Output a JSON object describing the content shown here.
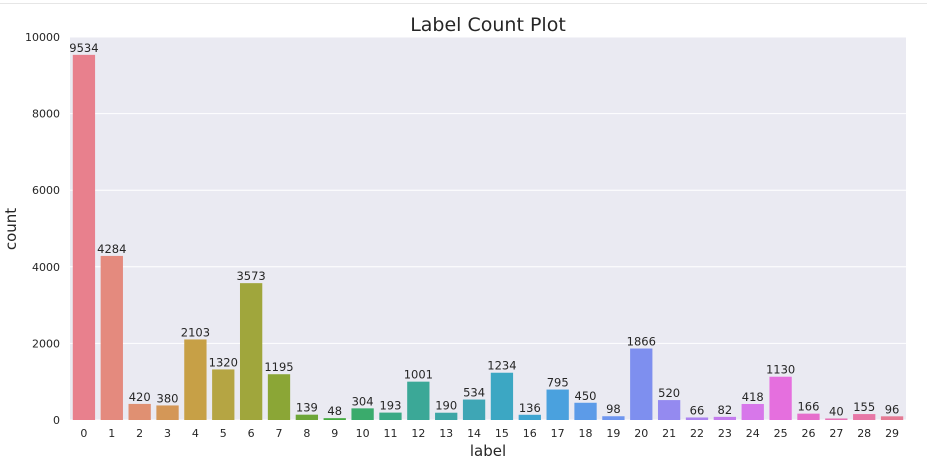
{
  "chart_data": {
    "type": "bar",
    "title": "Label Count Plot",
    "xlabel": "label",
    "ylabel": "count",
    "ylim": [
      0,
      10000
    ],
    "yticks": [
      0,
      2000,
      4000,
      6000,
      8000,
      10000
    ],
    "grid": true,
    "categories": [
      "0",
      "1",
      "2",
      "3",
      "4",
      "5",
      "6",
      "7",
      "8",
      "9",
      "10",
      "11",
      "12",
      "13",
      "14",
      "15",
      "16",
      "17",
      "18",
      "19",
      "20",
      "21",
      "22",
      "23",
      "24",
      "25",
      "26",
      "27",
      "28",
      "29"
    ],
    "values": [
      9534,
      4284,
      420,
      380,
      2103,
      1320,
      3573,
      1195,
      139,
      48,
      304,
      193,
      1001,
      190,
      534,
      1234,
      136,
      795,
      450,
      98,
      1866,
      520,
      66,
      82,
      418,
      1130,
      166,
      40,
      155,
      96
    ],
    "colors": [
      "#e8808d",
      "#e48a7e",
      "#e09072",
      "#d49757",
      "#c7a046",
      "#b5a543",
      "#a0a63c",
      "#8ba636",
      "#6ea638",
      "#46ab41",
      "#3aab6c",
      "#3aa985",
      "#3ba897",
      "#3da6a6",
      "#3ea6b5",
      "#3ca7c3",
      "#3fa5d1",
      "#4aa1de",
      "#5c9be8",
      "#6f96ef",
      "#7e8fef",
      "#948af0",
      "#ad84f0",
      "#c47bee",
      "#d777ea",
      "#e56fde",
      "#e66ecc",
      "#e673b7",
      "#e777a6",
      "#e57a94"
    ]
  }
}
